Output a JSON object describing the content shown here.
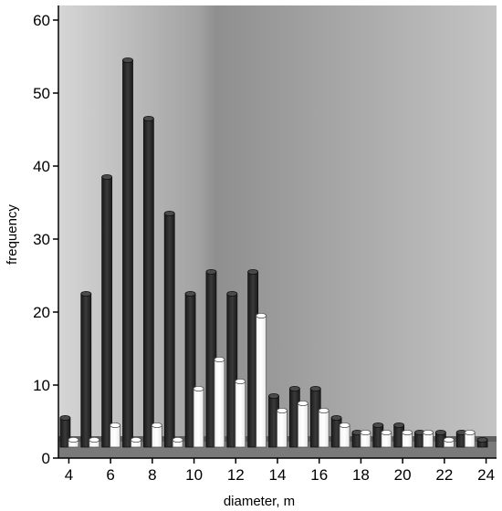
{
  "chart_data": {
    "type": "bar",
    "title": "",
    "xlabel": "diameter, m",
    "ylabel": "frequency",
    "ylim": [
      0,
      62
    ],
    "xlim": [
      3.5,
      24.5
    ],
    "y_ticks": [
      "0",
      "10",
      "20",
      "30",
      "40",
      "50",
      "60"
    ],
    "x_ticks": [
      "4",
      "6",
      "8",
      "10",
      "12",
      "14",
      "16",
      "18",
      "20",
      "22",
      "24"
    ],
    "x_tick_values": [
      4,
      6,
      8,
      10,
      12,
      14,
      16,
      18,
      20,
      22,
      24
    ],
    "y_tick_values": [
      0,
      10,
      20,
      30,
      40,
      50,
      60
    ],
    "categories": [
      4,
      5,
      6,
      7,
      8,
      9,
      10,
      11,
      12,
      13,
      14,
      15,
      16,
      17,
      18,
      19,
      20,
      21,
      22,
      23,
      24
    ],
    "series": [
      {
        "values": [
          4,
          21,
          37,
          53,
          45,
          32,
          21,
          24,
          21,
          24,
          7,
          8,
          8,
          4,
          2,
          3,
          3,
          2,
          2,
          2,
          1
        ],
        "color": "#2b2b2b"
      },
      {
        "values": [
          1,
          1,
          3,
          1,
          3,
          1,
          8,
          12,
          9,
          18,
          5,
          6,
          5,
          3,
          2,
          2,
          2,
          2,
          1,
          2,
          0
        ],
        "color": "#ffffff"
      }
    ],
    "grid": false,
    "legend": "none",
    "colors": {
      "background_light": "#cfcfcf",
      "background_dark": "#8a8a8a",
      "floor": "#808080"
    }
  }
}
